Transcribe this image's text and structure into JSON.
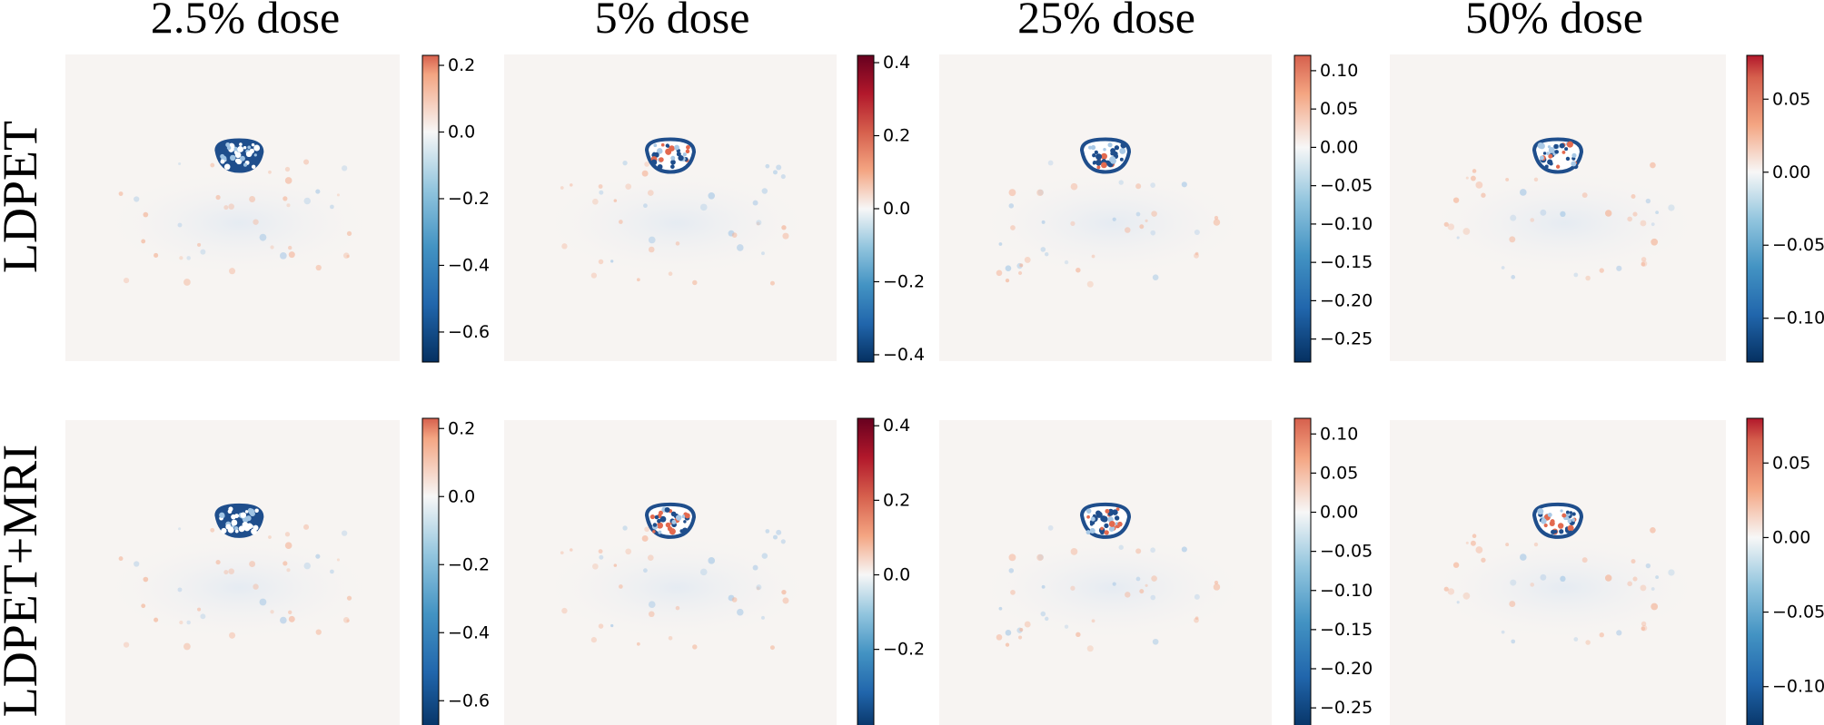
{
  "columns": [
    "2.5% dose",
    "5% dose",
    "25% dose",
    "50% dose"
  ],
  "rows": [
    "LDPET",
    "LDPET+MRI"
  ],
  "panels": [
    {
      "cmap": "RdBu_r",
      "vmin": -0.69,
      "vmax": 0.23,
      "ticks": [
        {
          "v": 0.2,
          "label": "0.2"
        },
        {
          "v": 0.0,
          "label": "0.0"
        },
        {
          "v": -0.2,
          "label": "−0.2"
        },
        {
          "v": -0.4,
          "label": "−0.4"
        },
        {
          "v": -0.6,
          "label": "−0.6"
        }
      ]
    },
    {
      "cmap": "RdBu_r",
      "vmin": -0.42,
      "vmax": 0.42,
      "ticks": [
        {
          "v": 0.4,
          "label": "0.4"
        },
        {
          "v": 0.2,
          "label": "0.2"
        },
        {
          "v": 0.0,
          "label": "0.0"
        },
        {
          "v": -0.2,
          "label": "−0.2"
        },
        {
          "v": -0.4,
          "label": "−0.4"
        }
      ]
    },
    {
      "cmap": "RdBu_r",
      "vmin": -0.28,
      "vmax": 0.12,
      "ticks": [
        {
          "v": 0.1,
          "label": "0.10"
        },
        {
          "v": 0.05,
          "label": "0.05"
        },
        {
          "v": 0.0,
          "label": "0.00"
        },
        {
          "v": -0.05,
          "label": "−0.05"
        },
        {
          "v": -0.1,
          "label": "−0.10"
        },
        {
          "v": -0.15,
          "label": "−0.15"
        },
        {
          "v": -0.2,
          "label": "−0.20"
        },
        {
          "v": -0.25,
          "label": "−0.25"
        }
      ]
    },
    {
      "cmap": "RdBu_r",
      "vmin": -0.13,
      "vmax": 0.08,
      "ticks": [
        {
          "v": 0.05,
          "label": "0.05"
        },
        {
          "v": 0.0,
          "label": "0.00"
        },
        {
          "v": -0.05,
          "label": "−0.05"
        },
        {
          "v": -0.1,
          "label": "−0.10"
        }
      ]
    }
  ],
  "colors": {
    "background": "#f7f4f2",
    "negative_strong": "#1f4e8c",
    "negative_light": "#a9c9e6",
    "positive_light": "#f4b59a"
  }
}
